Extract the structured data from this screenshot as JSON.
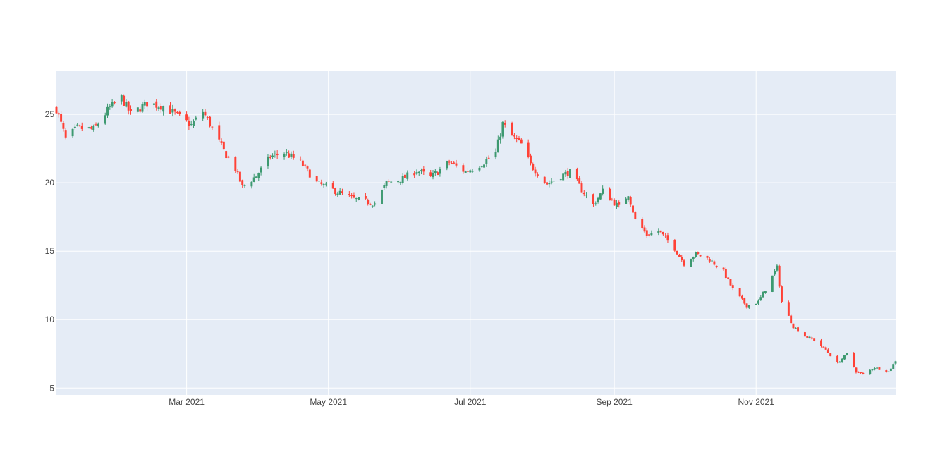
{
  "chart_data": {
    "type": "candlestick",
    "title": "",
    "xlabel": "",
    "ylabel": "",
    "x_range": [
      "2021-01-04",
      "2021-12-31"
    ],
    "ylim": [
      4.5,
      28.2
    ],
    "grid": true,
    "legend": "none",
    "colors": {
      "increasing": "#3D9970",
      "decreasing": "#FF4136",
      "plot_bg": "#E5ECF6",
      "grid": "#FFFFFF",
      "tick_text": "#444444"
    },
    "x_ticks": [
      {
        "date": "2021-03-01",
        "label": "Mar 2021"
      },
      {
        "date": "2021-05-01",
        "label": "May 2021"
      },
      {
        "date": "2021-07-01",
        "label": "Jul 2021"
      },
      {
        "date": "2021-09-01",
        "label": "Sep 2021"
      },
      {
        "date": "2021-11-01",
        "label": "Nov 2021"
      }
    ],
    "y_ticks": [
      {
        "value": 5,
        "label": "5"
      },
      {
        "value": 10,
        "label": "10"
      },
      {
        "value": 15,
        "label": "15"
      },
      {
        "value": 20,
        "label": "20"
      },
      {
        "value": 25,
        "label": "25"
      }
    ],
    "series": [
      {
        "close_anchors": [
          [
            "2021-01-04",
            25.4
          ],
          [
            "2021-01-08",
            23.2
          ],
          [
            "2021-01-13",
            24.0
          ],
          [
            "2021-01-20",
            23.9
          ],
          [
            "2021-01-27",
            25.5
          ],
          [
            "2021-02-01",
            26.2
          ],
          [
            "2021-02-05",
            25.0
          ],
          [
            "2021-02-12",
            25.8
          ],
          [
            "2021-02-19",
            25.6
          ],
          [
            "2021-02-26",
            24.8
          ],
          [
            "2021-03-03",
            24.2
          ],
          [
            "2021-03-08",
            25.2
          ],
          [
            "2021-03-12",
            24.0
          ],
          [
            "2021-03-17",
            22.3
          ],
          [
            "2021-03-22",
            21.0
          ],
          [
            "2021-03-25",
            19.7
          ],
          [
            "2021-03-31",
            20.5
          ],
          [
            "2021-04-06",
            21.9
          ],
          [
            "2021-04-12",
            22.2
          ],
          [
            "2021-04-19",
            21.5
          ],
          [
            "2021-04-26",
            20.0
          ],
          [
            "2021-05-04",
            19.4
          ],
          [
            "2021-05-12",
            18.8
          ],
          [
            "2021-05-21",
            18.5
          ],
          [
            "2021-05-26",
            20.0
          ],
          [
            "2021-06-02",
            20.3
          ],
          [
            "2021-06-08",
            20.9
          ],
          [
            "2021-06-14",
            20.4
          ],
          [
            "2021-06-22",
            21.5
          ],
          [
            "2021-06-29",
            20.8
          ],
          [
            "2021-07-06",
            21.4
          ],
          [
            "2021-07-12",
            22.2
          ],
          [
            "2021-07-15",
            24.3
          ],
          [
            "2021-07-19",
            23.4
          ],
          [
            "2021-07-23",
            22.8
          ],
          [
            "2021-07-27",
            21.3
          ],
          [
            "2021-08-03",
            19.9
          ],
          [
            "2021-08-09",
            20.5
          ],
          [
            "2021-08-13",
            20.8
          ],
          [
            "2021-08-18",
            19.5
          ],
          [
            "2021-08-23",
            18.4
          ],
          [
            "2021-08-27",
            19.4
          ],
          [
            "2021-09-03",
            18.2
          ],
          [
            "2021-09-07",
            19.2
          ],
          [
            "2021-09-10",
            17.3
          ],
          [
            "2021-09-15",
            16.2
          ],
          [
            "2021-09-20",
            16.5
          ],
          [
            "2021-09-27",
            15.2
          ],
          [
            "2021-10-01",
            14.1
          ],
          [
            "2021-10-06",
            14.8
          ],
          [
            "2021-10-12",
            14.4
          ],
          [
            "2021-10-18",
            13.5
          ],
          [
            "2021-10-22",
            12.2
          ],
          [
            "2021-10-28",
            11.0
          ],
          [
            "2021-11-02",
            11.3
          ],
          [
            "2021-11-05",
            12.2
          ],
          [
            "2021-11-10",
            13.8
          ],
          [
            "2021-11-12",
            11.3
          ],
          [
            "2021-11-17",
            9.5
          ],
          [
            "2021-11-22",
            8.8
          ],
          [
            "2021-11-26",
            8.5
          ],
          [
            "2021-12-01",
            7.8
          ],
          [
            "2021-12-06",
            6.8
          ],
          [
            "2021-12-10",
            7.5
          ],
          [
            "2021-12-14",
            6.2
          ],
          [
            "2021-12-17",
            6.0
          ],
          [
            "2021-12-22",
            6.5
          ],
          [
            "2021-12-28",
            6.2
          ],
          [
            "2021-12-31",
            7.0
          ]
        ]
      }
    ]
  }
}
